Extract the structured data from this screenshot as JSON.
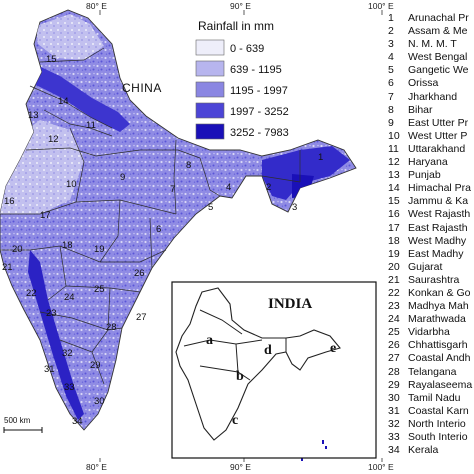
{
  "map": {
    "graticule": {
      "top_labels": [
        "80° E",
        "90° E",
        "100° E"
      ],
      "bottom_labels": [
        "80° E",
        "90° E",
        "100° E"
      ]
    },
    "country_label": "CHINA",
    "scale_bar_label": "500 km",
    "region_numbers": [
      "1",
      "2",
      "3",
      "4",
      "5",
      "6",
      "7",
      "8",
      "9",
      "10",
      "11",
      "12",
      "13",
      "14",
      "15",
      "16",
      "17",
      "18",
      "19",
      "20",
      "21",
      "22",
      "23",
      "24",
      "25",
      "26",
      "27",
      "28",
      "29",
      "30",
      "31",
      "32",
      "33",
      "34"
    ],
    "colors": {
      "class_1": "#eeeefa",
      "class_2": "#b7b5ee",
      "class_3": "#8a86e2",
      "class_4": "#4c45d6",
      "class_5": "#1a10b8",
      "boundary": "#333333"
    }
  },
  "legend": {
    "title": "Rainfall in mm",
    "classes": [
      {
        "label": "0 - 639",
        "color": "#eeeefa"
      },
      {
        "label": "639 - 1195",
        "color": "#b7b5ee"
      },
      {
        "label": "1195 - 1997",
        "color": "#8a86e2"
      },
      {
        "label": "1997 - 3252",
        "color": "#4c45d6"
      },
      {
        "label": "3252 - 7983",
        "color": "#1a10b8"
      }
    ]
  },
  "inset": {
    "title": "INDIA",
    "zone_labels": [
      "a",
      "b",
      "c",
      "d",
      "e"
    ]
  },
  "regions": [
    {
      "num": "1",
      "name": "Arunachal Pr"
    },
    {
      "num": "2",
      "name": "Assam & Me"
    },
    {
      "num": "3",
      "name": "N. M. M. T"
    },
    {
      "num": "4",
      "name": "West Bengal"
    },
    {
      "num": "5",
      "name": "Gangetic We"
    },
    {
      "num": "6",
      "name": "Orissa"
    },
    {
      "num": "7",
      "name": "Jharkhand"
    },
    {
      "num": "8",
      "name": "Bihar"
    },
    {
      "num": "9",
      "name": "East Utter Pr"
    },
    {
      "num": "10",
      "name": "West Utter P"
    },
    {
      "num": "11",
      "name": "Uttarakhand"
    },
    {
      "num": "12",
      "name": "Haryana"
    },
    {
      "num": "13",
      "name": "Punjab"
    },
    {
      "num": "14",
      "name": "Himachal Pra"
    },
    {
      "num": "15",
      "name": "Jammu & Ka"
    },
    {
      "num": "16",
      "name": "West Rajasth"
    },
    {
      "num": "17",
      "name": "East Rajasth"
    },
    {
      "num": "18",
      "name": "West Madhy"
    },
    {
      "num": "19",
      "name": "East Madhy"
    },
    {
      "num": "20",
      "name": "Gujarat"
    },
    {
      "num": "21",
      "name": "Saurashtra"
    },
    {
      "num": "22",
      "name": "Konkan & Go"
    },
    {
      "num": "23",
      "name": "Madhya Mah"
    },
    {
      "num": "24",
      "name": "Marathwada"
    },
    {
      "num": "25",
      "name": "Vidarbha"
    },
    {
      "num": "26",
      "name": "Chhattisgarh"
    },
    {
      "num": "27",
      "name": "Coastal Andh"
    },
    {
      "num": "28",
      "name": "Telangana"
    },
    {
      "num": "29",
      "name": "Rayalaseema"
    },
    {
      "num": "30",
      "name": "Tamil Nadu"
    },
    {
      "num": "31",
      "name": "Coastal Karn"
    },
    {
      "num": "32",
      "name": "North Interio"
    },
    {
      "num": "33",
      "name": "South Interio"
    },
    {
      "num": "34",
      "name": "Kerala"
    }
  ]
}
